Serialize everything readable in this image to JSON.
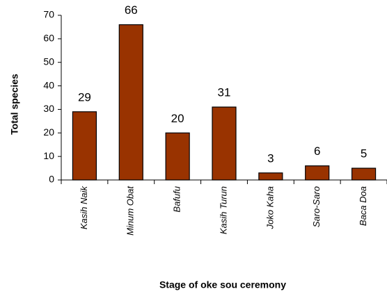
{
  "chart_data": {
    "type": "bar",
    "categories": [
      "Kasih Naik",
      "Minum Obat",
      "Bafufu",
      "Kasih Turun",
      "Joko Kaha",
      "Saro-Saro",
      "Baca Doa"
    ],
    "values": [
      29,
      66,
      20,
      31,
      3,
      6,
      5
    ],
    "color": "#993300",
    "xlabel": "Stage of oke sou ceremony",
    "ylabel": "Total species",
    "ylim": [
      0,
      70
    ],
    "yticks": [
      0,
      10,
      20,
      30,
      40,
      50,
      60,
      70
    ],
    "grid": false
  }
}
